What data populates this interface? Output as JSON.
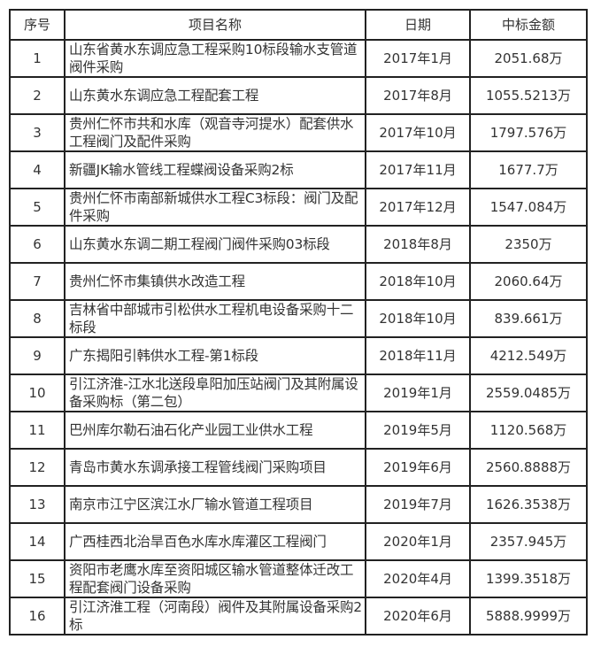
{
  "table": {
    "headers": [
      "序号",
      "项目名称",
      "日期",
      "中标金额"
    ],
    "rows": [
      {
        "no": "1",
        "name": "山东省黄水东调应急工程采购10标段输水支管道阀件采购",
        "date": "2017年1月",
        "amount": "2051.68万"
      },
      {
        "no": "2",
        "name": "山东黄水东调应急工程配套工程",
        "date": "2017年8月",
        "amount": "1055.5213万"
      },
      {
        "no": "3",
        "name": "贵州仁怀市共和水库（观音寺河提水）配套供水工程阀门及配件采购",
        "date": "2017年10月",
        "amount": "1797.576万"
      },
      {
        "no": "4",
        "name": "新疆JK输水管线工程蝶阀设备采购2标",
        "date": "2017年11月",
        "amount": "1677.7万"
      },
      {
        "no": "5",
        "name": "贵州仁怀市南部新城供水工程C3标段：阀门及配件采购",
        "date": "2017年12月",
        "amount": "1547.084万"
      },
      {
        "no": "6",
        "name": "山东黄水东调二期工程阀门阀件采购03标段",
        "date": "2018年8月",
        "amount": "2350万"
      },
      {
        "no": "7",
        "name": "贵州仁怀市集镇供水改造工程",
        "date": "2018年10月",
        "amount": "2060.64万"
      },
      {
        "no": "8",
        "name": "吉林省中部城市引松供水工程机电设备采购十二标段",
        "date": "2018年10月",
        "amount": "839.661万"
      },
      {
        "no": "9",
        "name": "广东揭阳引韩供水工程-第1标段",
        "date": "2018年11月",
        "amount": "4212.549万"
      },
      {
        "no": "10",
        "name": "引江济淮-江水北送段阜阳加压站阀门及其附属设备采购标（第二包）",
        "date": "2019年1月",
        "amount": "2559.0485万"
      },
      {
        "no": "11",
        "name": "巴州库尔勒石油石化产业园工业供水工程",
        "date": "2019年5月",
        "amount": "1120.568万"
      },
      {
        "no": "12",
        "name": "青岛市黄水东调承接工程管线阀门采购项目",
        "date": "2019年6月",
        "amount": "2560.8888万"
      },
      {
        "no": "13",
        "name": "南京市江宁区滨江水厂输水管道工程项目",
        "date": "2019年7月",
        "amount": "1626.3538万"
      },
      {
        "no": "14",
        "name": "广西桂西北治旱百色水库水库灌区工程阀门",
        "date": "2020年1月",
        "amount": "2357.945万"
      },
      {
        "no": "15",
        "name": "资阳市老鹰水库至资阳城区输水管道整体迁改工程配套阀门设备采购",
        "date": "2020年4月",
        "amount": "1399.3518万"
      },
      {
        "no": "16",
        "name": "引江济淮工程（河南段）阀件及其附属设备采购2标",
        "date": "2020年6月",
        "amount": "5888.9999万"
      }
    ]
  }
}
